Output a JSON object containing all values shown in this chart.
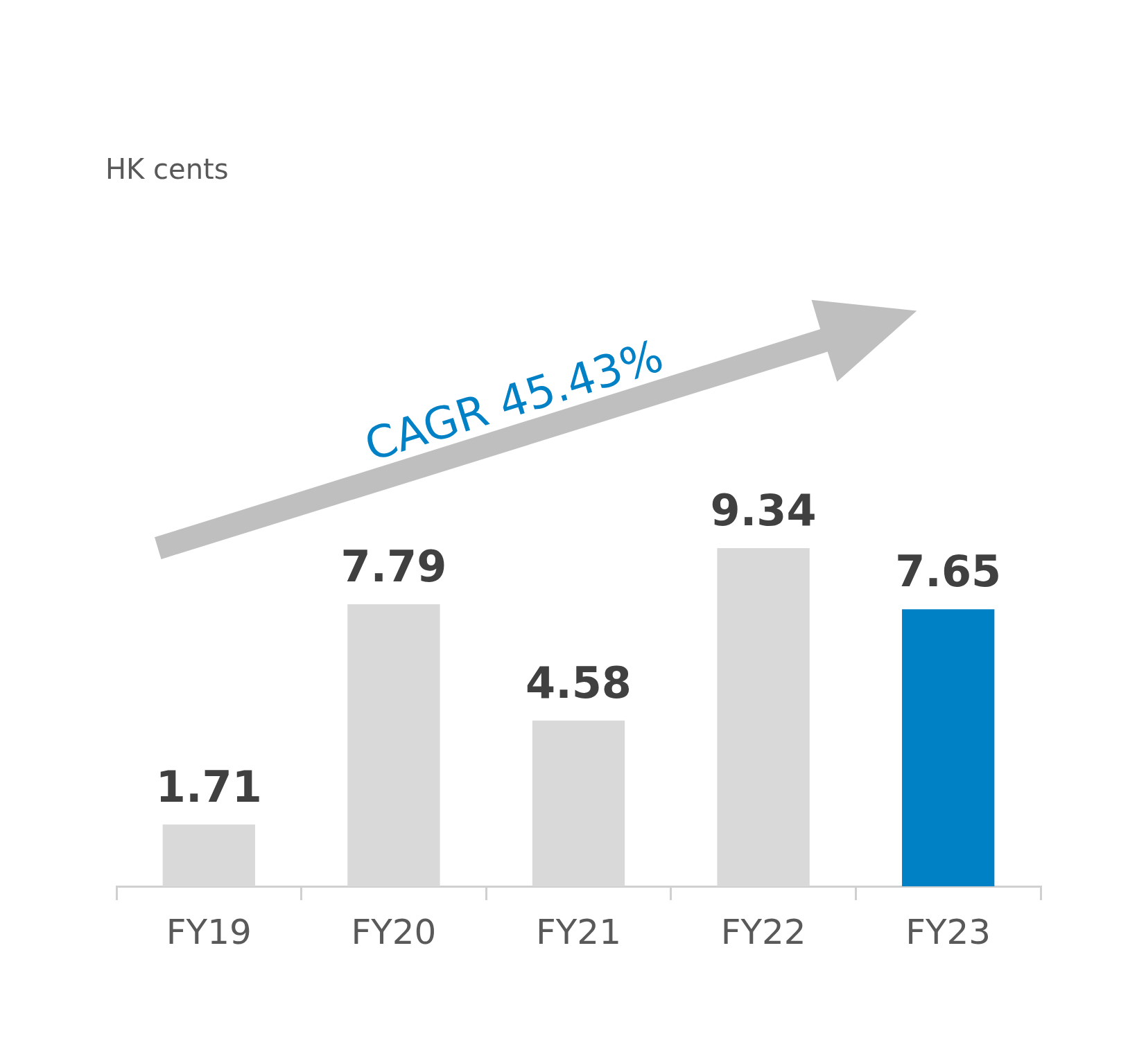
{
  "chart_data": {
    "type": "bar",
    "categories": [
      "FY19",
      "FY20",
      "FY21",
      "FY22",
      "FY23"
    ],
    "values": [
      1.71,
      7.79,
      4.58,
      9.34,
      7.65
    ],
    "colors": [
      "#d9d9d9",
      "#d9d9d9",
      "#d9d9d9",
      "#d9d9d9",
      "#0081c6"
    ],
    "data_labels": true,
    "legend": false,
    "grid": false,
    "annotations": [
      "HK cents",
      "CAGR 45.43%"
    ]
  }
}
